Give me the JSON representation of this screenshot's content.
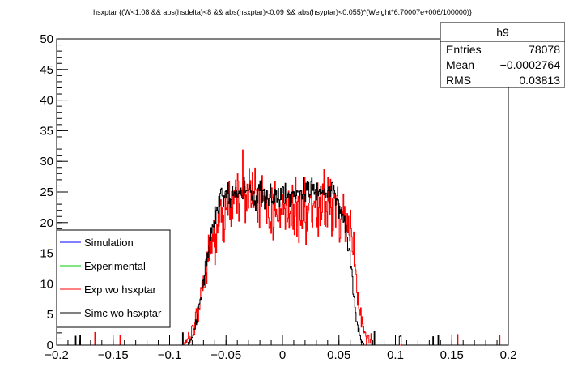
{
  "chart_data": {
    "type": "line",
    "title": "hsxptar {(W<1.08 && abs(hsdelta)<8 && abs(hsxptar)<0.09 && abs(hsyptar)<0.055)*(Weight*6.70007e+006/100000)}",
    "xlim": [
      -0.2,
      0.2
    ],
    "ylim": [
      0,
      50
    ],
    "x_ticks": [
      -0.2,
      -0.15,
      -0.1,
      -0.05,
      0,
      0.05,
      0.1,
      0.15,
      0.2
    ],
    "x_tick_labels": [
      "−0.2",
      "−0.15",
      "−0.1",
      "−0.05",
      "0",
      "0.05",
      "0.1",
      "0.15",
      "0.2"
    ],
    "y_ticks": [
      0,
      5,
      10,
      15,
      20,
      25,
      30,
      35,
      40,
      45,
      50
    ],
    "y_tick_labels": [
      "0",
      "5",
      "10",
      "15",
      "20",
      "25",
      "30",
      "35",
      "40",
      "45",
      "50"
    ],
    "grid": false,
    "legend_position": "bottom-left",
    "stats_position": "top-right",
    "stats": {
      "name": "h9",
      "rows": [
        {
          "label": "Entries",
          "value": "78078"
        },
        {
          "label": "Mean",
          "value": "−0.0002764"
        },
        {
          "label": "RMS",
          "value": "0.03813"
        }
      ]
    },
    "series": [
      {
        "name": "Simulation",
        "color": "#0000ff",
        "x": [],
        "y": []
      },
      {
        "name": "Experimental",
        "color": "#00cc00",
        "x": [],
        "y": []
      },
      {
        "name": "Exp wo hsxptar",
        "color": "#ff0000",
        "x": [
          -0.09,
          -0.085,
          -0.08,
          -0.075,
          -0.07,
          -0.065,
          -0.06,
          -0.055,
          -0.05,
          -0.045,
          -0.04,
          -0.035,
          -0.03,
          -0.025,
          -0.02,
          -0.015,
          -0.01,
          -0.005,
          0,
          0.005,
          0.01,
          0.015,
          0.02,
          0.025,
          0.03,
          0.035,
          0.04,
          0.045,
          0.05,
          0.055,
          0.06,
          0.065,
          0.07,
          0.075,
          0.08
        ],
        "y": [
          0,
          0.5,
          2,
          5,
          10,
          14,
          18,
          20.5,
          22,
          23,
          24,
          25,
          26,
          25,
          24,
          23,
          22,
          22,
          22,
          22,
          22,
          22,
          22.5,
          23,
          23,
          23,
          23,
          22.5,
          22,
          20.5,
          17,
          11,
          4,
          1,
          0
        ]
      },
      {
        "name": "Simc wo hsxptar",
        "color": "#000000",
        "x": [
          -0.085,
          -0.08,
          -0.075,
          -0.07,
          -0.065,
          -0.06,
          -0.055,
          -0.05,
          -0.045,
          -0.04,
          -0.035,
          -0.03,
          -0.025,
          -0.02,
          -0.015,
          -0.01,
          -0.005,
          0,
          0.005,
          0.01,
          0.015,
          0.02,
          0.025,
          0.03,
          0.035,
          0.04,
          0.045,
          0.05,
          0.055,
          0.06,
          0.065,
          0.07,
          0.075
        ],
        "y": [
          0,
          1,
          5,
          11,
          17,
          21,
          23.5,
          24.5,
          25,
          25,
          25,
          25,
          24.5,
          24.5,
          24.5,
          24.5,
          24.5,
          24.5,
          24.5,
          24.5,
          24.5,
          25,
          25,
          25,
          25,
          25,
          24.5,
          23,
          20,
          14,
          5,
          0.5,
          0
        ]
      }
    ]
  }
}
